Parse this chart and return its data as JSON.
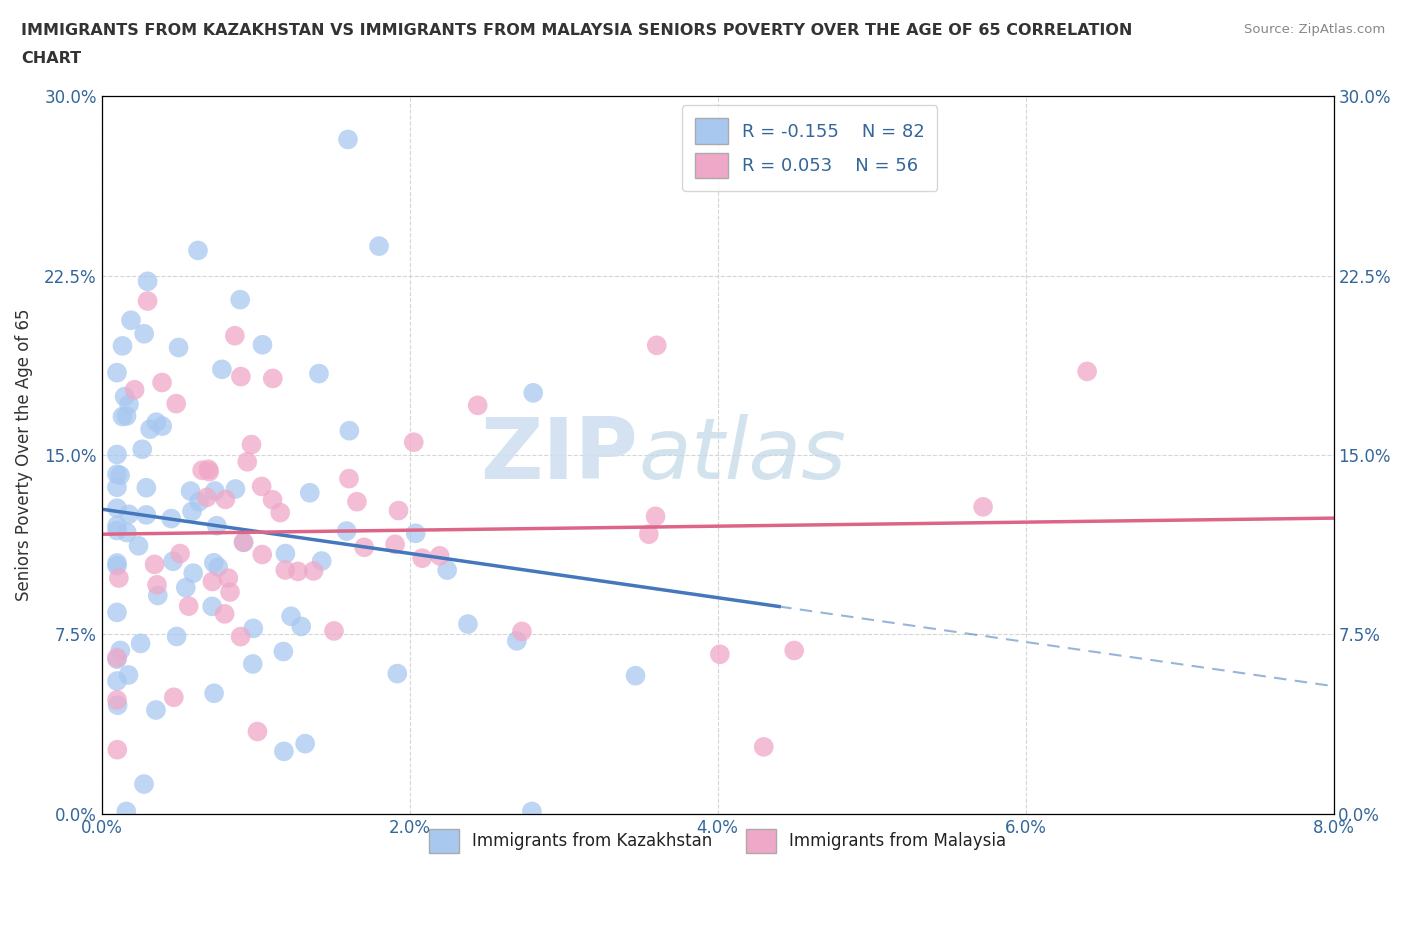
{
  "title_line1": "IMMIGRANTS FROM KAZAKHSTAN VS IMMIGRANTS FROM MALAYSIA SENIORS POVERTY OVER THE AGE OF 65 CORRELATION",
  "title_line2": "CHART",
  "ylabel": "Seniors Poverty Over the Age of 65",
  "source": "Source: ZipAtlas.com",
  "legend_label_1": "Immigrants from Kazakhstan",
  "legend_label_2": "Immigrants from Malaysia",
  "R1": -0.155,
  "N1": 82,
  "R2": 0.053,
  "N2": 56,
  "color1": "#a8c8f0",
  "color2": "#f0a8c8",
  "color1_line": "#4477bb",
  "color2_line": "#dd6688",
  "xlim": [
    0.0,
    0.08
  ],
  "ylim": [
    0.0,
    0.3
  ],
  "xticks": [
    0.0,
    0.02,
    0.04,
    0.06,
    0.08
  ],
  "yticks": [
    0.0,
    0.075,
    0.15,
    0.225,
    0.3
  ],
  "xtick_labels_left": [
    "0.0%",
    "2.0%",
    "4.0%",
    "6.0%",
    "8.0%"
  ],
  "xtick_labels_right": [
    "0.0%",
    "2.0%",
    "4.0%",
    "6.0%",
    "8.0%"
  ],
  "ytick_labels": [
    "0.0%",
    "7.5%",
    "15.0%",
    "22.5%",
    "30.0%"
  ],
  "watermark_zip": "ZIP",
  "watermark_atlas": "atlas",
  "background_color": "#ffffff",
  "grid_color": "#cccccc",
  "title_color": "#333333",
  "axis_label_color": "#336699",
  "tick_label_color": "#336699"
}
